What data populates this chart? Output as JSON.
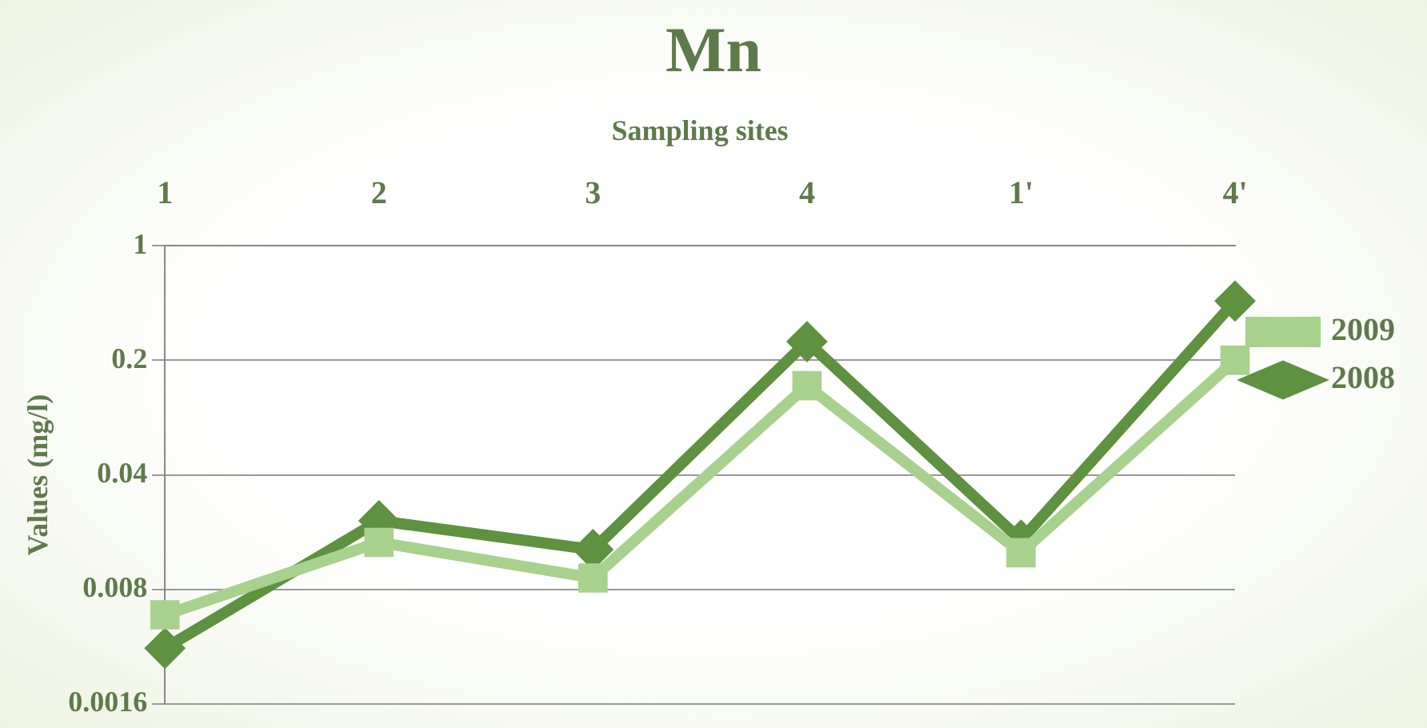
{
  "chart_data": {
    "type": "line",
    "title": "Mn",
    "xlabel": "Sampling sites",
    "ylabel": "Values (mg/l)",
    "categories": [
      "1",
      "2",
      "3",
      "4",
      "1'",
      "4'"
    ],
    "series": [
      {
        "name": "2008",
        "color": "#5e9140",
        "marker": "diamond",
        "values": [
          0.0035,
          0.021,
          0.014,
          0.26,
          0.016,
          0.46
        ]
      },
      {
        "name": "2009",
        "color": "#a9d18e",
        "marker": "square",
        "values": [
          0.0056,
          0.0155,
          0.0094,
          0.14,
          0.0134,
          0.2
        ]
      }
    ],
    "log": "y",
    "ylim": [
      0.0016,
      1
    ],
    "yticks": [
      0.0016,
      0.008,
      0.04,
      0.2,
      1
    ],
    "grid": "y",
    "legend": "right"
  }
}
